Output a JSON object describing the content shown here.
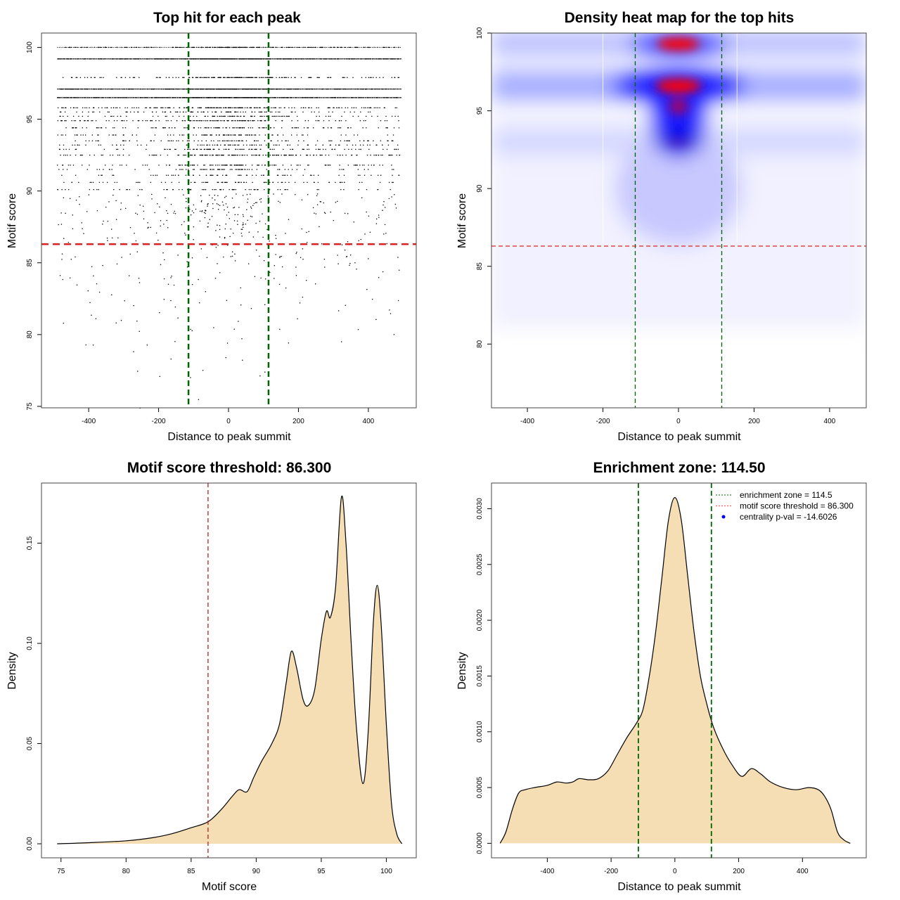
{
  "chart_data": [
    {
      "type": "scatter",
      "title": "Top hit for each peak",
      "xlabel": "Distance to peak summit",
      "ylabel": "Motif score",
      "xlim": [
        -535,
        537
      ],
      "ylim": [
        74.9,
        101
      ],
      "xticks": [
        -400,
        -200,
        0,
        200,
        400
      ],
      "yticks": [
        75,
        80,
        85,
        90,
        95,
        100
      ],
      "n_points": 3500,
      "dense_score_levels": [
        100,
        99.2,
        97.9,
        97.1,
        96.5,
        95.8,
        95.5,
        95.2,
        94.9,
        94.4,
        93.9,
        93.5,
        93.2,
        92.9,
        92.5,
        91.8,
        91.5,
        91.1,
        90.6,
        90.1
      ],
      "vlines": [
        -114.5,
        114.5
      ],
      "hline": 86.3,
      "colors": {
        "points": "#000000",
        "vlines": "#006400",
        "hline": "#dd2222"
      }
    },
    {
      "type": "heatmap",
      "title": "Density heat map for the top hits",
      "xlabel": "Distance to peak summit",
      "ylabel": "Motif score",
      "xlim": [
        -495,
        497
      ],
      "ylim": [
        75.9,
        100
      ],
      "xticks": [
        -400,
        -200,
        0,
        200,
        400
      ],
      "yticks": [
        80,
        85,
        90,
        95,
        100
      ],
      "hot_spots": [
        {
          "x": 0,
          "y": 99.3,
          "level": "high"
        },
        {
          "x": 0,
          "y": 96.6,
          "level": "high"
        },
        {
          "x": 0,
          "y": 95.2,
          "level": "medium"
        },
        {
          "x": 0,
          "y": 93.0,
          "level": "medium"
        }
      ],
      "vlines": [
        -114.5,
        114.5
      ],
      "hline": 86.3,
      "colors": {
        "low": "#ffffff",
        "mid": "#0000ff",
        "high": "#ff0000",
        "vlines": "#006400",
        "hline": "#dd2222"
      }
    },
    {
      "type": "area",
      "title": "Motif score threshold: 86.300",
      "xlabel": "Motif score",
      "ylabel": "Density",
      "xlim": [
        73.5,
        102.3
      ],
      "ylim": [
        -0.007,
        0.18
      ],
      "xticks": [
        75,
        80,
        85,
        90,
        95,
        100
      ],
      "yticks": [
        0,
        0.05,
        0.1,
        0.15
      ],
      "ytick_labels": [
        "0.00",
        "0.05",
        "0.10",
        "0.15"
      ],
      "x": [
        74.7,
        77,
        80,
        82,
        83.5,
        85,
        86.3,
        87.3,
        88.2,
        88.7,
        89.3,
        89.8,
        90.4,
        91.2,
        91.8,
        92.3,
        92.7,
        93.1,
        93.6,
        94.0,
        94.5,
        95.0,
        95.4,
        95.7,
        96.1,
        96.55,
        96.9,
        97.3,
        97.7,
        98.2,
        98.6,
        99.0,
        99.3,
        99.6,
        100.0,
        100.4,
        100.8,
        101.2
      ],
      "y": [
        0,
        0.0005,
        0.0015,
        0.003,
        0.005,
        0.008,
        0.011,
        0.017,
        0.024,
        0.027,
        0.026,
        0.033,
        0.041,
        0.05,
        0.06,
        0.08,
        0.096,
        0.088,
        0.072,
        0.069,
        0.077,
        0.102,
        0.116,
        0.113,
        0.128,
        0.173,
        0.15,
        0.1,
        0.058,
        0.03,
        0.055,
        0.11,
        0.129,
        0.11,
        0.06,
        0.02,
        0.005,
        0
      ],
      "vline": 86.3,
      "colors": {
        "fill": "#f5deb3",
        "line": "#000000",
        "vline": "#b22222"
      }
    },
    {
      "type": "area",
      "title": "Enrichment zone: 114.50",
      "xlabel": "Distance to peak summit",
      "ylabel": "Density",
      "xlim": [
        -575,
        600
      ],
      "ylim": [
        -0.00013,
        0.00323
      ],
      "xticks": [
        -400,
        -200,
        0,
        200,
        400
      ],
      "yticks": [
        0,
        0.0005,
        0.001,
        0.0015,
        0.002,
        0.0025,
        0.003
      ],
      "ytick_labels": [
        "0.0000",
        "0.0005",
        "0.0010",
        "0.0015",
        "0.0020",
        "0.0025",
        "0.0030"
      ],
      "x": [
        -548,
        -530,
        -510,
        -490,
        -470,
        -440,
        -400,
        -370,
        -340,
        -320,
        -300,
        -270,
        -240,
        -210,
        -180,
        -150,
        -120,
        -100,
        -80,
        -60,
        -40,
        -20,
        0,
        20,
        40,
        60,
        80,
        100,
        120,
        150,
        180,
        210,
        240,
        270,
        300,
        340,
        380,
        420,
        450,
        470,
        490,
        510,
        530,
        550
      ],
      "y": [
        0,
        0.0001,
        0.0003,
        0.00045,
        0.00048,
        0.0005,
        0.00052,
        0.00055,
        0.00054,
        0.00055,
        0.00058,
        0.00057,
        0.00058,
        0.00065,
        0.0008,
        0.00095,
        0.00108,
        0.0012,
        0.0015,
        0.0019,
        0.0024,
        0.0029,
        0.0031,
        0.0029,
        0.0024,
        0.0019,
        0.0015,
        0.00125,
        0.00105,
        0.00085,
        0.0007,
        0.0006,
        0.00067,
        0.00062,
        0.00055,
        0.0005,
        0.00048,
        0.0005,
        0.00048,
        0.00042,
        0.0003,
        0.0001,
        3e-05,
        0
      ],
      "vlines": [
        -114.5,
        114.5
      ],
      "legend": {
        "position": "top-right",
        "entries": [
          {
            "label": "enrichment zone = 114.5",
            "color": "#006400",
            "style": "dotted"
          },
          {
            "label": "motif score threshold = 86.300",
            "color": "#ff4444",
            "style": "dotted"
          },
          {
            "label": "centrality p-val = -14.6026",
            "color": "#0000ff",
            "style": "point"
          }
        ]
      },
      "colors": {
        "fill": "#f5deb3",
        "line": "#000000",
        "vlines": "#006400"
      }
    }
  ]
}
